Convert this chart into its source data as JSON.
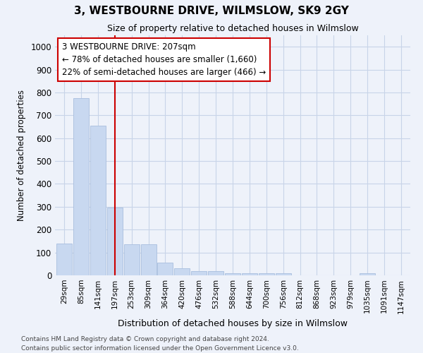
{
  "title": "3, WESTBOURNE DRIVE, WILMSLOW, SK9 2GY",
  "subtitle": "Size of property relative to detached houses in Wilmslow",
  "xlabel": "Distribution of detached houses by size in Wilmslow",
  "ylabel": "Number of detached properties",
  "categories": [
    "29sqm",
    "85sqm",
    "141sqm",
    "197sqm",
    "253sqm",
    "309sqm",
    "364sqm",
    "420sqm",
    "476sqm",
    "532sqm",
    "588sqm",
    "644sqm",
    "700sqm",
    "756sqm",
    "812sqm",
    "868sqm",
    "923sqm",
    "979sqm",
    "1035sqm",
    "1091sqm",
    "1147sqm"
  ],
  "values": [
    140,
    775,
    655,
    295,
    135,
    135,
    55,
    32,
    18,
    18,
    10,
    8,
    8,
    8,
    0,
    0,
    0,
    0,
    10,
    0,
    0
  ],
  "bar_color": "#c8d8f0",
  "bar_edge_color": "#a8bede",
  "ylim": [
    0,
    1050
  ],
  "yticks": [
    0,
    100,
    200,
    300,
    400,
    500,
    600,
    700,
    800,
    900,
    1000
  ],
  "annotation_text": "3 WESTBOURNE DRIVE: 207sqm\n← 78% of detached houses are smaller (1,660)\n22% of semi-detached houses are larger (466) →",
  "annotation_box_color": "#ffffff",
  "annotation_box_edge": "#cc0000",
  "vline_color": "#cc0000",
  "grid_color": "#c8d4e8",
  "footer_line1": "Contains HM Land Registry data © Crown copyright and database right 2024.",
  "footer_line2": "Contains public sector information licensed under the Open Government Licence v3.0.",
  "bg_color": "#eef2fa"
}
